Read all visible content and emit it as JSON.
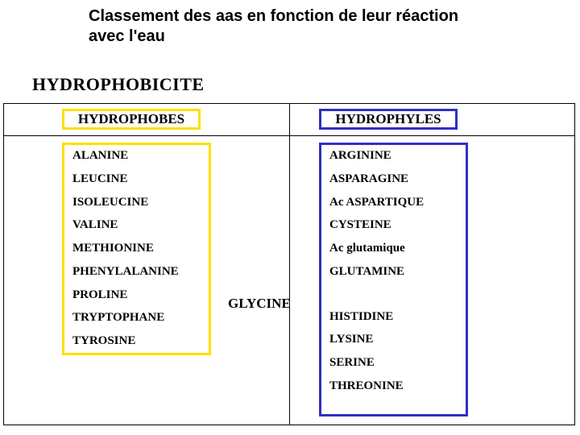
{
  "title": "Classement des aas en fonction de leur réaction avec l'eau",
  "subtitle": "HYDROPHOBICITE",
  "headers": {
    "left": "HYDROPHOBES",
    "right": "HYDROPHYLES"
  },
  "center_item": "GLYCINE",
  "hydrophobes": [
    "ALANINE",
    "LEUCINE",
    "ISOLEUCINE",
    "VALINE",
    "METHIONINE",
    "PHENYLALANINE",
    "PROLINE",
    "TRYPTOPHANE",
    "TYROSINE"
  ],
  "hydrophyles_top": [
    "ARGININE",
    "ASPARAGINE",
    "Ac ASPARTIQUE",
    "CYSTEINE",
    "Ac glutamique",
    "GLUTAMINE"
  ],
  "hydrophyles_bottom": [
    "HISTIDINE",
    "LYSINE",
    "SERINE",
    "THREONINE"
  ],
  "colors": {
    "yellow_border": "#ffe000",
    "blue_border": "#3030c0",
    "text": "#000000",
    "background": "#ffffff"
  }
}
